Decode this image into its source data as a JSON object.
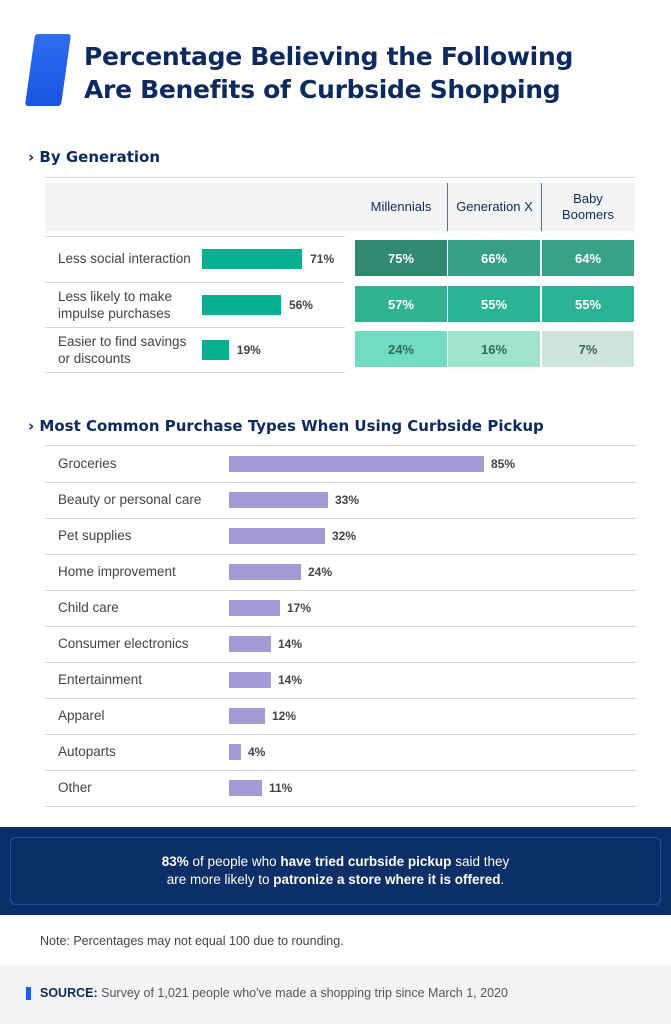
{
  "title_lines": [
    "Percentage Believing the Following",
    "Are Benefits of Curbside Shopping"
  ],
  "chart_data": [
    {
      "type": "table",
      "title": "By Generation",
      "columns": [
        "Millennials",
        "Generation X",
        "Baby Boomers"
      ],
      "rows": [
        {
          "label": "Less social interaction",
          "overall": 71,
          "overall_label": "71%",
          "values": [
            75,
            66,
            64
          ],
          "value_labels": [
            "75%",
            "66%",
            "64%"
          ],
          "colors": [
            "#2f8a6f",
            "#35a085",
            "#37a285"
          ],
          "text_colors": [
            "#ffffff",
            "#ffffff",
            "#ffffff"
          ]
        },
        {
          "label": "Less likely to make impulse purchases",
          "overall": 56,
          "overall_label": "56%",
          "values": [
            57,
            55,
            55
          ],
          "value_labels": [
            "57%",
            "55%",
            "55%"
          ],
          "colors": [
            "#30b393",
            "#2cb395",
            "#2cb395"
          ],
          "text_colors": [
            "#ffffff",
            "#ffffff",
            "#ffffff"
          ]
        },
        {
          "label": "Easier to find savings or discounts",
          "overall": 19,
          "overall_label": "19%",
          "values": [
            24,
            16,
            7
          ],
          "value_labels": [
            "24%",
            "16%",
            "7%"
          ],
          "colors": [
            "#72dcc3",
            "#a0e3ce",
            "#cfe4dd"
          ],
          "text_colors": [
            "#2f6b50",
            "#2f6b50",
            "#2f6b50"
          ]
        }
      ]
    },
    {
      "type": "bar",
      "title": "Most Common Purchase Types When Using Curbside Pickup",
      "categories": [
        "Groceries",
        "Beauty or personal care",
        "Pet supplies",
        "Home improvement",
        "Child care",
        "Consumer electronics",
        "Entertainment",
        "Apparel",
        "Autoparts",
        "Other"
      ],
      "values": [
        85,
        33,
        32,
        24,
        17,
        14,
        14,
        12,
        4,
        11
      ],
      "value_labels": [
        "85%",
        "33%",
        "32%",
        "24%",
        "17%",
        "14%",
        "14%",
        "12%",
        "4%",
        "11%"
      ],
      "bar_color": "#a29bd6"
    }
  ],
  "callout": {
    "line1": [
      {
        "t": "83%",
        "b": true
      },
      {
        "t": " of people who ",
        "b": false
      },
      {
        "t": "have tried curbside pickup",
        "b": true
      },
      {
        "t": " said they",
        "b": false
      }
    ],
    "line2": [
      {
        "t": "are more likely to ",
        "b": false
      },
      {
        "t": "patronize a store where it is offered",
        "b": true
      },
      {
        "t": ".",
        "b": false
      }
    ]
  },
  "note": "Note: Percentages may not equal 100 due to rounding.",
  "source": {
    "label": "SOURCE:",
    "text": " Survey of 1,021 people who've made a shopping trip since March 1, 2020"
  }
}
